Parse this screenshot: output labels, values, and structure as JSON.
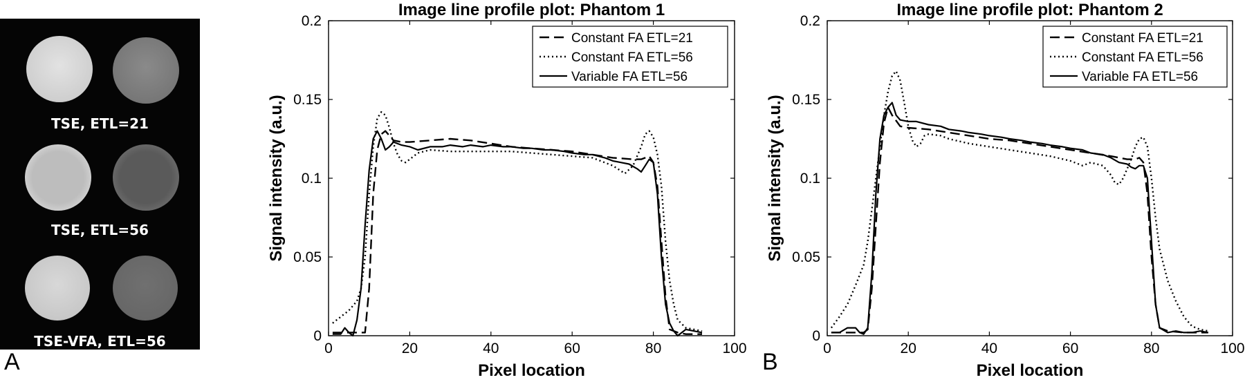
{
  "figure": {
    "panel_a_letter": "A",
    "panel_b_letter": "B",
    "mri_labels": [
      "TSE, ETL=21",
      "TSE, ETL=56",
      "TSE-VFA, ETL=56"
    ]
  },
  "colors": {
    "background": "#ffffff",
    "ink": "#000000",
    "mri_background": "#050505"
  },
  "chart_data": [
    {
      "type": "line",
      "title": "Image line profile plot: Phantom 1",
      "xlabel": "Pixel location",
      "ylabel": "Signal intensity (a.u.)",
      "xlim": [
        0,
        100
      ],
      "ylim": [
        0,
        0.2
      ],
      "xticks": [
        0,
        20,
        40,
        60,
        80,
        100
      ],
      "yticks": [
        0,
        0.05,
        0.1,
        0.15,
        0.2
      ],
      "ytick_labels": [
        "0",
        "0.05",
        "0.1",
        "0.15",
        "0.2"
      ],
      "legend_position": "top-right",
      "series": [
        {
          "name": "Constant FA ETL=21",
          "style": "dashed",
          "x": [
            1,
            4,
            7,
            9,
            10,
            11,
            12,
            13,
            14,
            16,
            18,
            20,
            25,
            30,
            35,
            40,
            45,
            50,
            55,
            60,
            65,
            70,
            75,
            77,
            78,
            79,
            80,
            81,
            82,
            83,
            84,
            86,
            88,
            92
          ],
          "y": [
            0.002,
            0.002,
            0.002,
            0.002,
            0.03,
            0.09,
            0.118,
            0.128,
            0.13,
            0.124,
            0.123,
            0.123,
            0.124,
            0.125,
            0.124,
            0.122,
            0.12,
            0.119,
            0.118,
            0.117,
            0.115,
            0.113,
            0.112,
            0.112,
            0.113,
            0.114,
            0.11,
            0.095,
            0.06,
            0.025,
            0.004,
            0.002,
            0.001,
            0.001
          ]
        },
        {
          "name": "Constant FA ETL=56",
          "style": "dotted",
          "x": [
            1,
            3,
            5,
            7,
            8,
            9,
            10,
            11,
            12,
            13,
            14,
            15,
            16,
            17,
            18,
            19,
            20,
            22,
            25,
            30,
            35,
            40,
            45,
            50,
            55,
            60,
            65,
            70,
            73,
            75,
            77,
            78,
            79,
            80,
            81,
            82,
            83,
            84,
            85,
            86,
            88,
            90,
            92
          ],
          "y": [
            0.008,
            0.012,
            0.016,
            0.022,
            0.03,
            0.05,
            0.09,
            0.12,
            0.138,
            0.142,
            0.14,
            0.132,
            0.122,
            0.115,
            0.111,
            0.11,
            0.112,
            0.116,
            0.118,
            0.117,
            0.117,
            0.117,
            0.117,
            0.116,
            0.115,
            0.114,
            0.113,
            0.108,
            0.103,
            0.108,
            0.12,
            0.128,
            0.13,
            0.126,
            0.115,
            0.095,
            0.06,
            0.035,
            0.02,
            0.01,
            0.005,
            0.004,
            0.003
          ]
        },
        {
          "name": "Variable FA ETL=56",
          "style": "solid",
          "x": [
            1,
            3,
            4,
            5,
            6,
            7,
            8,
            9,
            10,
            11,
            12,
            13,
            14,
            15,
            16,
            18,
            20,
            22,
            25,
            28,
            30,
            33,
            35,
            38,
            40,
            43,
            45,
            48,
            50,
            53,
            55,
            58,
            60,
            63,
            65,
            68,
            70,
            72,
            74,
            76,
            77,
            78,
            79,
            80,
            81,
            82,
            83,
            84,
            85,
            86,
            88,
            90,
            92
          ],
          "y": [
            0.001,
            0.001,
            0.005,
            0.002,
            0.0,
            0.01,
            0.03,
            0.07,
            0.105,
            0.125,
            0.13,
            0.125,
            0.118,
            0.12,
            0.123,
            0.121,
            0.12,
            0.118,
            0.12,
            0.12,
            0.121,
            0.12,
            0.121,
            0.12,
            0.121,
            0.12,
            0.12,
            0.119,
            0.119,
            0.118,
            0.118,
            0.117,
            0.116,
            0.115,
            0.115,
            0.113,
            0.111,
            0.11,
            0.109,
            0.106,
            0.104,
            0.108,
            0.112,
            0.11,
            0.09,
            0.05,
            0.02,
            0.008,
            0.003,
            0.0,
            0.004,
            0.003,
            0.002
          ]
        }
      ]
    },
    {
      "type": "line",
      "title": "Image line profile plot: Phantom 2",
      "xlabel": "Pixel location",
      "ylabel": "Signal intensity (a.u.)",
      "xlim": [
        0,
        100
      ],
      "ylim": [
        0,
        0.2
      ],
      "xticks": [
        0,
        20,
        40,
        60,
        80,
        100
      ],
      "yticks": [
        0,
        0.05,
        0.1,
        0.15,
        0.2
      ],
      "ytick_labels": [
        "0",
        "0.05",
        "0.1",
        "0.15",
        "0.2"
      ],
      "legend_position": "top-right",
      "series": [
        {
          "name": "Constant FA ETL=21",
          "style": "dashed",
          "x": [
            1,
            4,
            7,
            9,
            10,
            11,
            12,
            13,
            14,
            15,
            16,
            18,
            20,
            25,
            30,
            35,
            40,
            45,
            50,
            55,
            60,
            65,
            70,
            74,
            76,
            77,
            78,
            79,
            80,
            81,
            82,
            84,
            88,
            94
          ],
          "y": [
            0.002,
            0.002,
            0.002,
            0.002,
            0.004,
            0.03,
            0.07,
            0.11,
            0.135,
            0.145,
            0.14,
            0.133,
            0.132,
            0.131,
            0.129,
            0.127,
            0.125,
            0.124,
            0.122,
            0.12,
            0.118,
            0.116,
            0.114,
            0.112,
            0.112,
            0.113,
            0.11,
            0.09,
            0.05,
            0.02,
            0.005,
            0.003,
            0.002,
            0.002
          ]
        },
        {
          "name": "Constant FA ETL=56",
          "style": "dotted",
          "x": [
            1,
            3,
            5,
            7,
            9,
            10,
            11,
            12,
            13,
            14,
            15,
            16,
            17,
            18,
            19,
            20,
            21,
            22,
            23,
            24,
            25,
            28,
            30,
            35,
            40,
            45,
            50,
            55,
            60,
            63,
            65,
            68,
            70,
            71,
            72,
            73,
            75,
            76,
            77,
            78,
            79,
            80,
            81,
            82,
            84,
            86,
            88,
            90,
            92,
            94
          ],
          "y": [
            0.005,
            0.012,
            0.02,
            0.032,
            0.045,
            0.06,
            0.08,
            0.1,
            0.12,
            0.14,
            0.155,
            0.165,
            0.168,
            0.162,
            0.148,
            0.133,
            0.124,
            0.12,
            0.122,
            0.127,
            0.128,
            0.127,
            0.125,
            0.122,
            0.12,
            0.118,
            0.116,
            0.114,
            0.111,
            0.108,
            0.11,
            0.108,
            0.102,
            0.097,
            0.096,
            0.1,
            0.112,
            0.12,
            0.125,
            0.126,
            0.12,
            0.1,
            0.075,
            0.055,
            0.035,
            0.022,
            0.012,
            0.006,
            0.004,
            0.003
          ]
        },
        {
          "name": "Variable FA ETL=56",
          "style": "solid",
          "x": [
            1,
            3,
            5,
            7,
            8,
            9,
            10,
            11,
            12,
            13,
            14,
            15,
            16,
            17,
            18,
            20,
            22,
            25,
            28,
            30,
            33,
            35,
            38,
            40,
            43,
            45,
            48,
            50,
            53,
            55,
            58,
            60,
            63,
            65,
            68,
            70,
            72,
            74,
            75,
            76,
            77,
            78,
            79,
            80,
            81,
            82,
            84,
            86,
            88,
            90,
            92,
            94
          ],
          "y": [
            0.002,
            0.002,
            0.005,
            0.005,
            0.002,
            0.001,
            0.005,
            0.04,
            0.09,
            0.125,
            0.14,
            0.145,
            0.148,
            0.14,
            0.137,
            0.136,
            0.136,
            0.134,
            0.133,
            0.131,
            0.13,
            0.129,
            0.128,
            0.127,
            0.126,
            0.125,
            0.124,
            0.123,
            0.122,
            0.121,
            0.12,
            0.119,
            0.118,
            0.116,
            0.115,
            0.113,
            0.11,
            0.109,
            0.107,
            0.106,
            0.108,
            0.108,
            0.1,
            0.06,
            0.02,
            0.005,
            0.002,
            0.003,
            0.002,
            0.002,
            0.003,
            0.002
          ]
        }
      ]
    }
  ]
}
